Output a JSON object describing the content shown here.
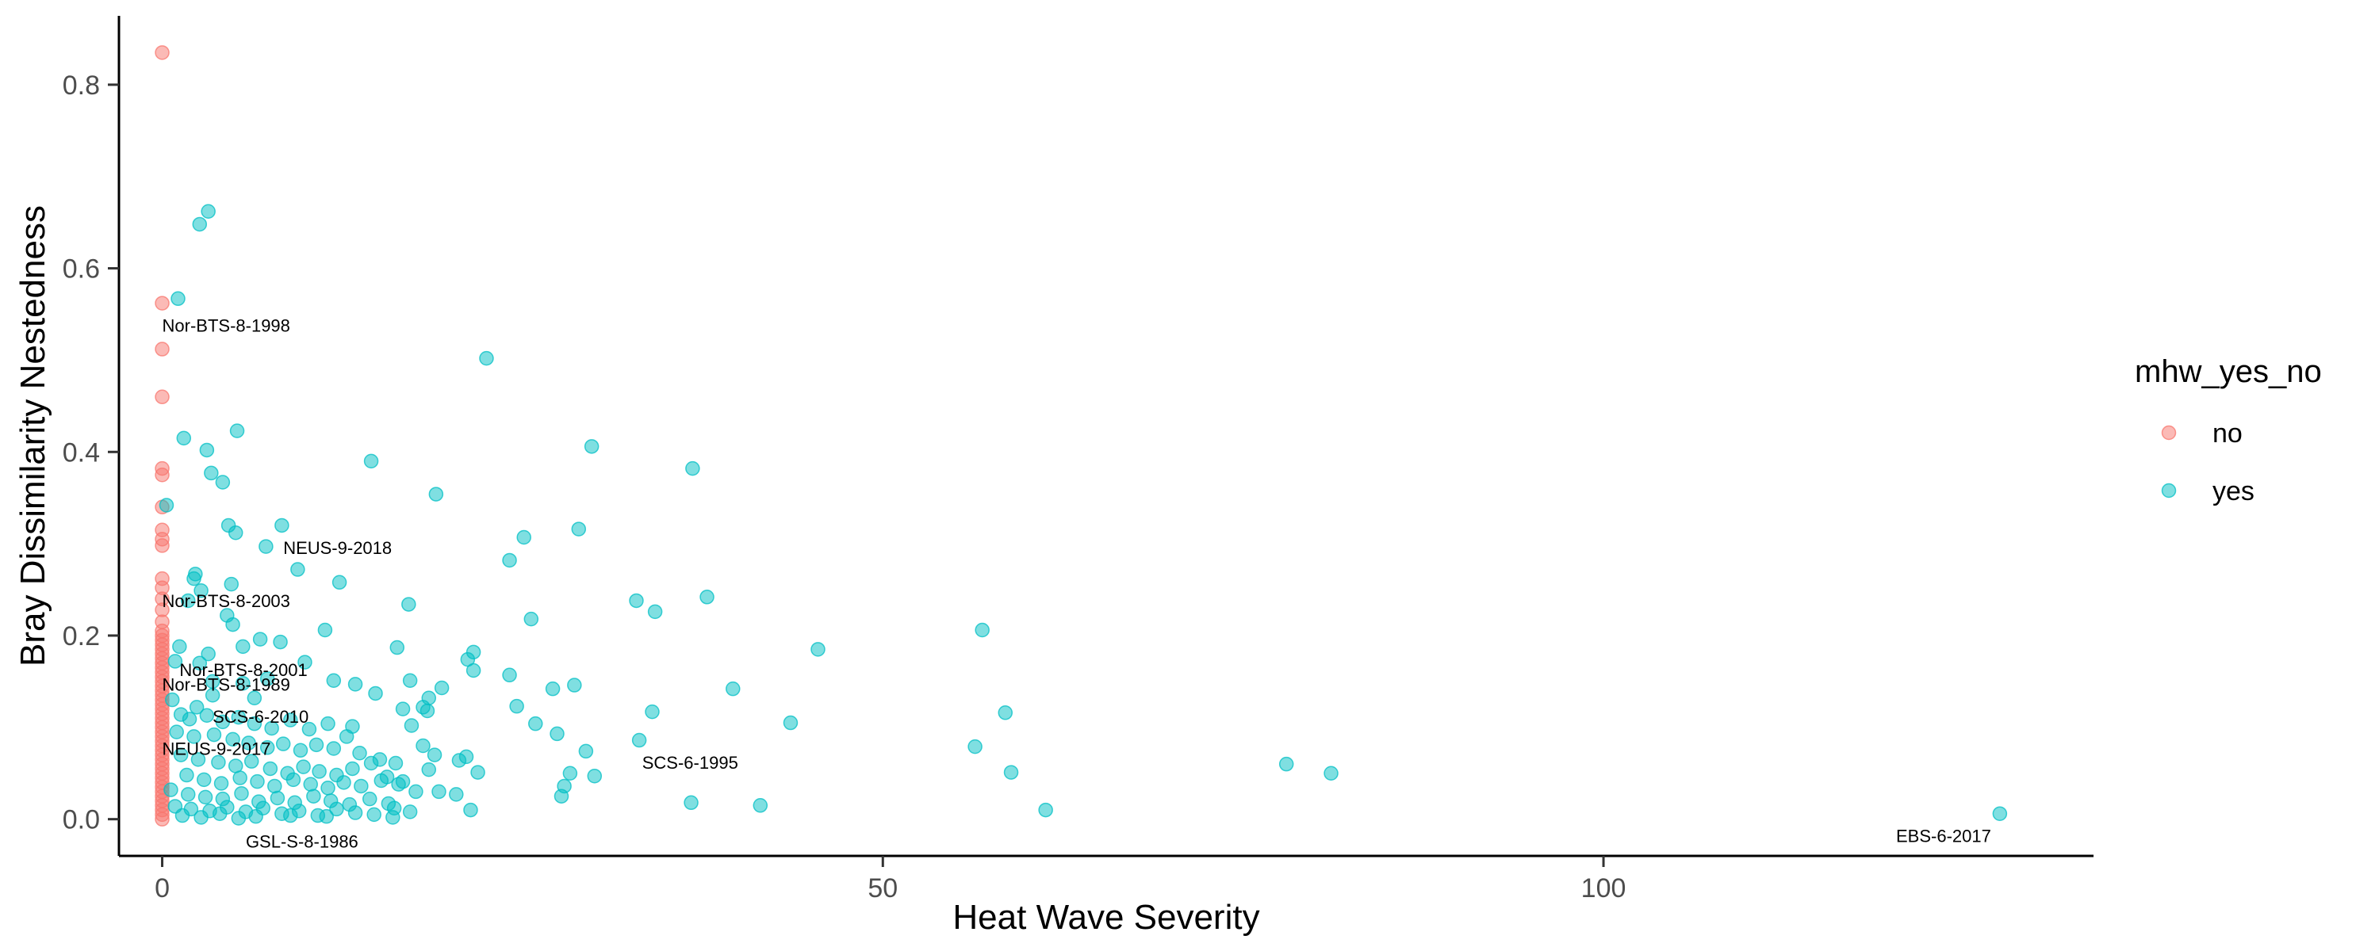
{
  "chart_data": {
    "type": "scatter",
    "title": "",
    "xlabel": "Heat Wave Severity",
    "ylabel": "Bray Dissimilarity Nestedness",
    "xlim": [
      -3,
      134
    ],
    "ylim": [
      -0.04,
      0.875
    ],
    "x_ticks": [
      0,
      50,
      100
    ],
    "y_ticks": [
      0.0,
      0.2,
      0.4,
      0.6,
      0.8
    ],
    "x_tick_labels": [
      "0",
      "50",
      "100"
    ],
    "y_tick_labels": [
      "0.0",
      "0.2",
      "0.4",
      "0.6",
      "0.8"
    ],
    "grid": false,
    "legend": {
      "title": "mhw_yes_no",
      "position": "right",
      "entries": [
        {
          "label": "no",
          "color": "#F8766D"
        },
        {
          "label": "yes",
          "color": "#00BFC4"
        }
      ]
    },
    "series": [
      {
        "name": "no",
        "color": "#F8766D",
        "points": [
          [
            0,
            0.835
          ],
          [
            0,
            0.562
          ],
          [
            0,
            0.512
          ],
          [
            0,
            0.46
          ],
          [
            0,
            0.382
          ],
          [
            0,
            0.375
          ],
          [
            0,
            0.34
          ],
          [
            0,
            0.315
          ],
          [
            0,
            0.305
          ],
          [
            0,
            0.298
          ],
          [
            0,
            0.262
          ],
          [
            0,
            0.252
          ],
          [
            0,
            0.24
          ],
          [
            0,
            0.228
          ],
          [
            0,
            0.215
          ],
          [
            0,
            0.205
          ],
          [
            0,
            0.2
          ],
          [
            0,
            0.195
          ],
          [
            0,
            0.19
          ],
          [
            0,
            0.185
          ],
          [
            0,
            0.18
          ],
          [
            0,
            0.175
          ],
          [
            0,
            0.17
          ],
          [
            0,
            0.165
          ],
          [
            0,
            0.16
          ],
          [
            0,
            0.155
          ],
          [
            0,
            0.15
          ],
          [
            0,
            0.145
          ],
          [
            0,
            0.14
          ],
          [
            0,
            0.135
          ],
          [
            0,
            0.13
          ],
          [
            0,
            0.125
          ],
          [
            0,
            0.12
          ],
          [
            0,
            0.115
          ],
          [
            0,
            0.11
          ],
          [
            0,
            0.105
          ],
          [
            0,
            0.1
          ],
          [
            0,
            0.095
          ],
          [
            0,
            0.09
          ],
          [
            0,
            0.085
          ],
          [
            0,
            0.08
          ],
          [
            0,
            0.075
          ],
          [
            0,
            0.07
          ],
          [
            0,
            0.065
          ],
          [
            0,
            0.06
          ],
          [
            0,
            0.055
          ],
          [
            0,
            0.05
          ],
          [
            0,
            0.045
          ],
          [
            0,
            0.04
          ],
          [
            0,
            0.035
          ],
          [
            0,
            0.03
          ],
          [
            0,
            0.025
          ],
          [
            0,
            0.02
          ],
          [
            0,
            0.015
          ],
          [
            0,
            0.01
          ],
          [
            0,
            0.005
          ],
          [
            0,
            0.0
          ]
        ]
      },
      {
        "name": "yes",
        "color": "#00BFC4",
        "points": [
          [
            3.2,
            0.662
          ],
          [
            2.6,
            0.648
          ],
          [
            1.1,
            0.567
          ],
          [
            22.5,
            0.502
          ],
          [
            5.2,
            0.423
          ],
          [
            1.5,
            0.415
          ],
          [
            3.1,
            0.402
          ],
          [
            14.5,
            0.39
          ],
          [
            4.2,
            0.367
          ],
          [
            3.4,
            0.377
          ],
          [
            29.8,
            0.406
          ],
          [
            36.8,
            0.382
          ],
          [
            19.0,
            0.354
          ],
          [
            0.3,
            0.342
          ],
          [
            8.3,
            0.32
          ],
          [
            4.6,
            0.32
          ],
          [
            5.1,
            0.312
          ],
          [
            25.1,
            0.307
          ],
          [
            28.9,
            0.316
          ],
          [
            7.2,
            0.297
          ],
          [
            24.1,
            0.282
          ],
          [
            9.4,
            0.272
          ],
          [
            2.3,
            0.267
          ],
          [
            2.2,
            0.262
          ],
          [
            12.3,
            0.258
          ],
          [
            4.8,
            0.256
          ],
          [
            2.7,
            0.249
          ],
          [
            32.9,
            0.238
          ],
          [
            37.8,
            0.242
          ],
          [
            1.8,
            0.238
          ],
          [
            17.1,
            0.234
          ],
          [
            34.2,
            0.226
          ],
          [
            4.5,
            0.222
          ],
          [
            4.9,
            0.212
          ],
          [
            25.6,
            0.218
          ],
          [
            6.8,
            0.196
          ],
          [
            8.2,
            0.193
          ],
          [
            11.3,
            0.206
          ],
          [
            56.9,
            0.206
          ],
          [
            1.2,
            0.188
          ],
          [
            5.6,
            0.188
          ],
          [
            3.2,
            0.18
          ],
          [
            9.9,
            0.171
          ],
          [
            16.3,
            0.187
          ],
          [
            21.6,
            0.182
          ],
          [
            0.9,
            0.172
          ],
          [
            2.6,
            0.17
          ],
          [
            3.5,
            0.15
          ],
          [
            5.6,
            0.148
          ],
          [
            7.3,
            0.153
          ],
          [
            11.9,
            0.151
          ],
          [
            13.4,
            0.147
          ],
          [
            17.2,
            0.151
          ],
          [
            19.4,
            0.143
          ],
          [
            21.2,
            0.174
          ],
          [
            21.6,
            0.162
          ],
          [
            24.1,
            0.157
          ],
          [
            27.1,
            0.142
          ],
          [
            28.6,
            0.146
          ],
          [
            39.6,
            0.142
          ],
          [
            45.5,
            0.185
          ],
          [
            3.5,
            0.135
          ],
          [
            6.4,
            0.132
          ],
          [
            14.8,
            0.137
          ],
          [
            18.5,
            0.132
          ],
          [
            18.1,
            0.122
          ],
          [
            2.4,
            0.122
          ],
          [
            0.7,
            0.13
          ],
          [
            1.3,
            0.114
          ],
          [
            1.9,
            0.109
          ],
          [
            3.1,
            0.113
          ],
          [
            4.2,
            0.106
          ],
          [
            5.3,
            0.111
          ],
          [
            6.4,
            0.104
          ],
          [
            7.6,
            0.099
          ],
          [
            8.9,
            0.108
          ],
          [
            10.2,
            0.098
          ],
          [
            11.5,
            0.104
          ],
          [
            13.2,
            0.101
          ],
          [
            16.7,
            0.12
          ],
          [
            17.3,
            0.102
          ],
          [
            18.4,
            0.118
          ],
          [
            24.6,
            0.123
          ],
          [
            25.9,
            0.104
          ],
          [
            27.4,
            0.093
          ],
          [
            34.0,
            0.117
          ],
          [
            43.6,
            0.105
          ],
          [
            58.5,
            0.116
          ],
          [
            1.0,
            0.095
          ],
          [
            2.2,
            0.09
          ],
          [
            3.6,
            0.092
          ],
          [
            4.9,
            0.087
          ],
          [
            6.0,
            0.083
          ],
          [
            7.3,
            0.078
          ],
          [
            8.4,
            0.082
          ],
          [
            9.6,
            0.075
          ],
          [
            10.7,
            0.081
          ],
          [
            11.9,
            0.077
          ],
          [
            12.8,
            0.09
          ],
          [
            13.7,
            0.072
          ],
          [
            15.1,
            0.065
          ],
          [
            16.2,
            0.061
          ],
          [
            18.1,
            0.08
          ],
          [
            18.9,
            0.07
          ],
          [
            20.6,
            0.064
          ],
          [
            21.1,
            0.068
          ],
          [
            29.4,
            0.074
          ],
          [
            33.1,
            0.086
          ],
          [
            56.4,
            0.079
          ],
          [
            1.3,
            0.07
          ],
          [
            2.5,
            0.065
          ],
          [
            3.9,
            0.062
          ],
          [
            5.1,
            0.058
          ],
          [
            6.2,
            0.063
          ],
          [
            7.5,
            0.055
          ],
          [
            8.7,
            0.05
          ],
          [
            9.8,
            0.057
          ],
          [
            10.9,
            0.052
          ],
          [
            12.1,
            0.048
          ],
          [
            13.2,
            0.055
          ],
          [
            14.5,
            0.061
          ],
          [
            15.6,
            0.046
          ],
          [
            16.7,
            0.041
          ],
          [
            18.5,
            0.054
          ],
          [
            21.9,
            0.051
          ],
          [
            28.3,
            0.05
          ],
          [
            30.0,
            0.047
          ],
          [
            58.9,
            0.051
          ],
          [
            78.0,
            0.06
          ],
          [
            81.1,
            0.05
          ],
          [
            1.7,
            0.048
          ],
          [
            2.9,
            0.043
          ],
          [
            4.1,
            0.039
          ],
          [
            5.4,
            0.045
          ],
          [
            6.6,
            0.041
          ],
          [
            7.8,
            0.036
          ],
          [
            9.1,
            0.043
          ],
          [
            10.3,
            0.038
          ],
          [
            11.5,
            0.034
          ],
          [
            12.6,
            0.04
          ],
          [
            13.8,
            0.036
          ],
          [
            15.2,
            0.042
          ],
          [
            16.4,
            0.038
          ],
          [
            17.6,
            0.03
          ],
          [
            19.2,
            0.03
          ],
          [
            20.4,
            0.027
          ],
          [
            27.9,
            0.036
          ],
          [
            0.6,
            0.032
          ],
          [
            1.8,
            0.027
          ],
          [
            3.0,
            0.024
          ],
          [
            4.2,
            0.022
          ],
          [
            5.5,
            0.028
          ],
          [
            6.7,
            0.019
          ],
          [
            8.0,
            0.023
          ],
          [
            9.2,
            0.018
          ],
          [
            10.5,
            0.025
          ],
          [
            11.7,
            0.02
          ],
          [
            13.0,
            0.016
          ],
          [
            14.4,
            0.022
          ],
          [
            15.7,
            0.017
          ],
          [
            16.1,
            0.012
          ],
          [
            27.7,
            0.025
          ],
          [
            36.7,
            0.018
          ],
          [
            41.5,
            0.015
          ],
          [
            0.9,
            0.014
          ],
          [
            2.0,
            0.011
          ],
          [
            3.3,
            0.009
          ],
          [
            4.5,
            0.013
          ],
          [
            5.8,
            0.008
          ],
          [
            7.0,
            0.012
          ],
          [
            8.3,
            0.006
          ],
          [
            9.5,
            0.009
          ],
          [
            10.8,
            0.004
          ],
          [
            12.1,
            0.011
          ],
          [
            13.4,
            0.007
          ],
          [
            14.7,
            0.005
          ],
          [
            16.0,
            0.002
          ],
          [
            17.2,
            0.008
          ],
          [
            21.4,
            0.01
          ],
          [
            61.3,
            0.01
          ],
          [
            1.4,
            0.004
          ],
          [
            2.7,
            0.002
          ],
          [
            4.0,
            0.006
          ],
          [
            5.3,
            0.001
          ],
          [
            6.5,
            0.003
          ],
          [
            8.9,
            0.004
          ],
          [
            11.4,
            0.003
          ],
          [
            127.5,
            0.006
          ]
        ]
      }
    ],
    "annotations": [
      {
        "text": "Nor-BTS-8-1998",
        "x": 0.0,
        "y": 0.538
      },
      {
        "text": "NEUS-9-2018",
        "x": 8.4,
        "y": 0.296
      },
      {
        "text": "Nor-BTS-8-2003",
        "x": 0.0,
        "y": 0.238
      },
      {
        "text": "Nor-BTS-8-2001",
        "x": 1.2,
        "y": 0.163
      },
      {
        "text": "Nor-BTS-8-1989",
        "x": 0.0,
        "y": 0.147
      },
      {
        "text": "SCS-6-2010",
        "x": 3.5,
        "y": 0.112
      },
      {
        "text": "NEUS-9-2017",
        "x": 0.0,
        "y": 0.077
      },
      {
        "text": "SCS-6-1995",
        "x": 33.3,
        "y": 0.062
      },
      {
        "text": "GSL-S-8-1986",
        "x": 5.8,
        "y": -0.024
      },
      {
        "text": "EBS-6-2017",
        "x": 120.3,
        "y": -0.018
      }
    ]
  }
}
